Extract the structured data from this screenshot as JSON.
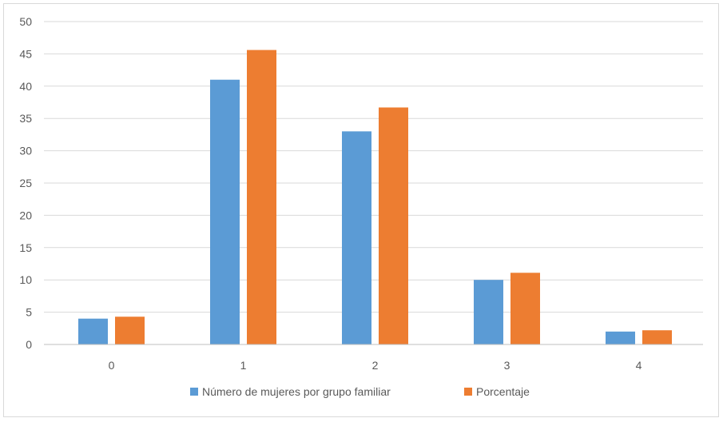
{
  "chart_data": {
    "type": "bar",
    "title": "",
    "xlabel": "",
    "ylabel": "",
    "categories": [
      "0",
      "1",
      "2",
      "3",
      "4"
    ],
    "series": [
      {
        "name": "Número de mujeres por grupo familiar",
        "values": [
          4,
          41,
          33,
          10,
          2
        ],
        "color": "#5b9bd5"
      },
      {
        "name": "Porcentaje",
        "values": [
          4.3,
          45.6,
          36.7,
          11.1,
          2.2
        ],
        "color": "#ed7d31"
      }
    ],
    "ylim": [
      0,
      50
    ],
    "yticks": [
      "0",
      "5",
      "10",
      "15",
      "20",
      "25",
      "30",
      "35",
      "40",
      "45",
      "50"
    ],
    "grid": true,
    "legend_position": "bottom",
    "colors": {
      "gridline": "#d9d9d9",
      "axis": "#bfbfbf",
      "text": "#595959"
    }
  }
}
